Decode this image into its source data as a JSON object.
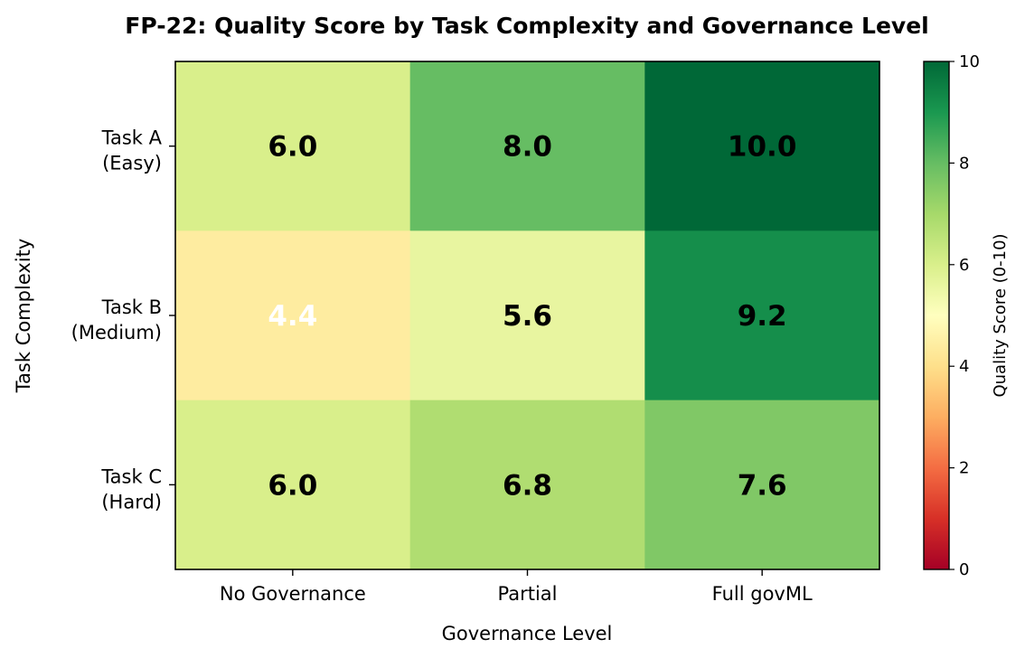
{
  "chart_data": {
    "type": "heatmap",
    "title": "FP-22: Quality Score by Task Complexity and Governance Level",
    "xlabel": "Governance Level",
    "ylabel": "Task Complexity",
    "x_categories": [
      "No Governance",
      "Partial",
      "Full govML"
    ],
    "y_categories": [
      [
        "Task A",
        "(Easy)"
      ],
      [
        "Task B",
        "(Medium)"
      ],
      [
        "Task C",
        "(Hard)"
      ]
    ],
    "values": [
      [
        6.0,
        8.0,
        10.0
      ],
      [
        4.4,
        5.6,
        9.2
      ],
      [
        6.0,
        6.8,
        7.6
      ]
    ],
    "value_labels": [
      [
        "6.0",
        "8.0",
        "10.0"
      ],
      [
        "4.4",
        "5.6",
        "9.2"
      ],
      [
        "6.0",
        "6.8",
        "7.6"
      ]
    ],
    "colormap": "RdYlGn",
    "vmin": 0,
    "vmax": 10,
    "colorbar": {
      "label": "Quality Score (0-10)",
      "ticks": [
        0,
        2,
        4,
        6,
        8,
        10
      ]
    },
    "label_colors": {
      "dark": "#000000",
      "light": "#ffffff"
    },
    "grid": false,
    "legend": "colorbar-right"
  }
}
